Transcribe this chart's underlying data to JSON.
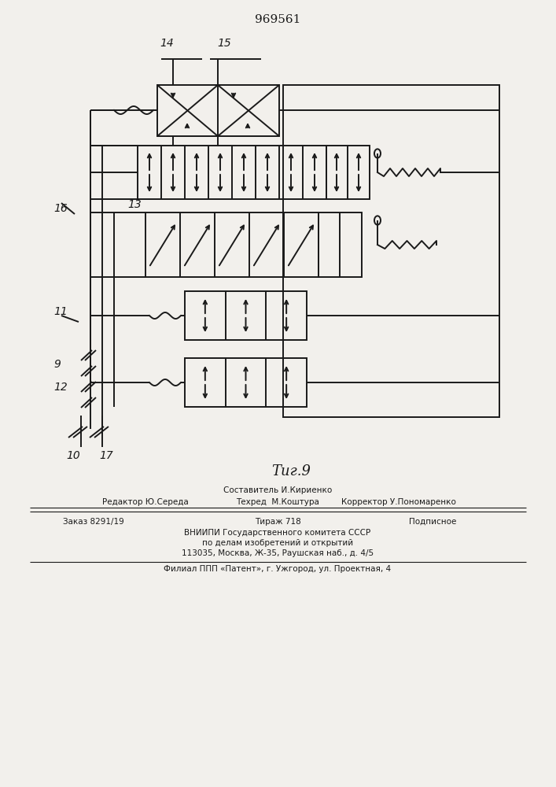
{
  "title": "969561",
  "fig_label": "Τиг.9",
  "bg_color": "#f2f0ec",
  "line_color": "#1a1a1a",
  "lw": 1.4,
  "footer": {
    "line1_center": "Составитель И.Кириенко",
    "line2_left": "Редактор Ю.Середа",
    "line2_center": "Техред  М.Коштура",
    "line2_right": "Корректор У.Пономаренко",
    "line3_left": "Заказ 8291/19",
    "line3_center": "Тираж 718",
    "line3_right": "Подписное",
    "line4": "ВНИИПИ Государственного комитета СССР",
    "line5": "по делам изобретений и открытий",
    "line6": "113035, Москва, Ж-35, Раушская наб., д. 4/5",
    "line7": "Филиал ППП «Патент», г. Ужгород, ул. Проектная, 4"
  }
}
